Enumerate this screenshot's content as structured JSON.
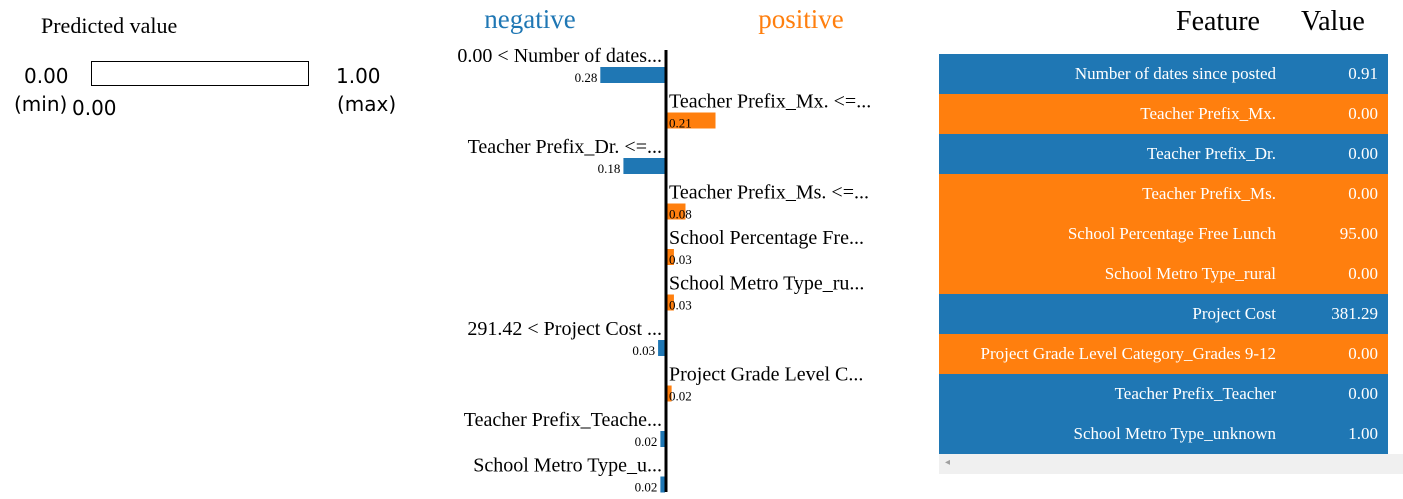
{
  "predicted": {
    "title": "Predicted value",
    "min_value": "0.00",
    "max_value": "1.00",
    "min_label": "(min)",
    "max_label": "(max)",
    "value": "0.00",
    "value_fraction": 0.0
  },
  "chart_data": {
    "type": "bar",
    "orientation": "horizontal",
    "negative_label": "negative",
    "positive_label": "positive",
    "colors": {
      "negative": "#1f77b4",
      "positive": "#ff7f0e"
    },
    "bars": [
      {
        "label": "0.00 < Number of dates...",
        "value": -0.28,
        "value_label": "0.28"
      },
      {
        "label": "Teacher Prefix_Mx. <=...",
        "value": 0.21,
        "value_label": "0.21"
      },
      {
        "label": "Teacher Prefix_Dr. <=...",
        "value": -0.18,
        "value_label": "0.18"
      },
      {
        "label": "Teacher Prefix_Ms. <=...",
        "value": 0.08,
        "value_label": "0.08"
      },
      {
        "label": "School Percentage Fre...",
        "value": 0.03,
        "value_label": "0.03"
      },
      {
        "label": "School Metro Type_ru...",
        "value": 0.03,
        "value_label": "0.03"
      },
      {
        "label": "291.42 < Project Cost ...",
        "value": -0.03,
        "value_label": "0.03"
      },
      {
        "label": "Project Grade Level C...",
        "value": 0.02,
        "value_label": "0.02"
      },
      {
        "label": "Teacher Prefix_Teache...",
        "value": -0.02,
        "value_label": "0.02"
      },
      {
        "label": "School Metro Type_u...",
        "value": -0.02,
        "value_label": "0.02"
      }
    ]
  },
  "table": {
    "feature_header": "Feature",
    "value_header": "Value",
    "rows": [
      {
        "feature": "Number of dates since posted",
        "value": "0.91",
        "color": "#1f77b4"
      },
      {
        "feature": "Teacher Prefix_Mx.",
        "value": "0.00",
        "color": "#ff7f0e"
      },
      {
        "feature": "Teacher Prefix_Dr.",
        "value": "0.00",
        "color": "#1f77b4"
      },
      {
        "feature": "Teacher Prefix_Ms.",
        "value": "0.00",
        "color": "#ff7f0e"
      },
      {
        "feature": "School Percentage Free Lunch",
        "value": "95.00",
        "color": "#ff7f0e"
      },
      {
        "feature": "School Metro Type_rural",
        "value": "0.00",
        "color": "#ff7f0e"
      },
      {
        "feature": "Project Cost",
        "value": "381.29",
        "color": "#1f77b4"
      },
      {
        "feature": "Project Grade Level Category_Grades 9-12",
        "value": "0.00",
        "color": "#ff7f0e"
      },
      {
        "feature": "Teacher Prefix_Teacher",
        "value": "0.00",
        "color": "#1f77b4"
      },
      {
        "feature": "School Metro Type_unknown",
        "value": "1.00",
        "color": "#1f77b4"
      }
    ],
    "scroll_arrow": "◂"
  }
}
